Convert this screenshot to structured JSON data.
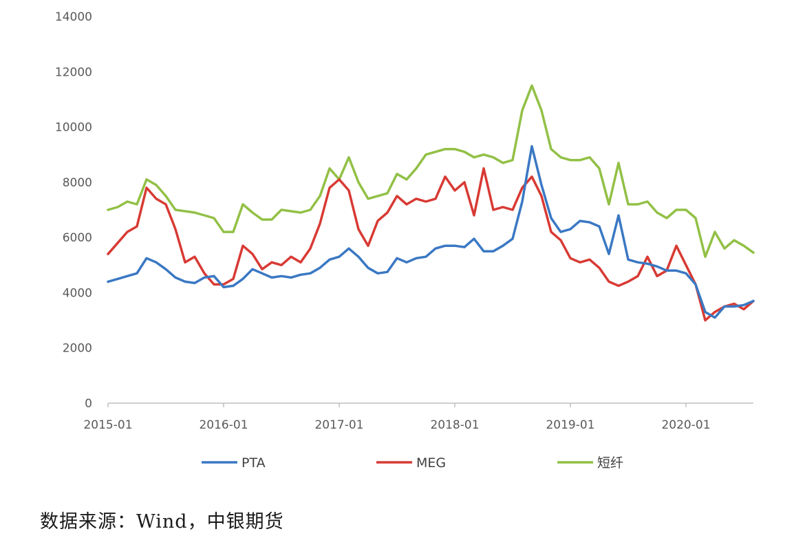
{
  "chart_data": {
    "type": "line",
    "title": "",
    "xlabel": "",
    "ylabel": "",
    "ylim": [
      0,
      14000
    ],
    "y_ticks": [
      "0",
      "2000",
      "4000",
      "6000",
      "8000",
      "10000",
      "12000",
      "14000"
    ],
    "xlim": [
      "2015-01",
      "2020-08"
    ],
    "x_ticks": [
      "2015-01",
      "2016-01",
      "2017-01",
      "2018-01",
      "2019-01",
      "2020-01"
    ],
    "grid": false,
    "legend_position": "bottom",
    "series": [
      {
        "name": "PTA",
        "color": "#3a78c3",
        "points": [
          [
            "2015-01",
            4400
          ],
          [
            "2015-02",
            4500
          ],
          [
            "2015-03",
            4600
          ],
          [
            "2015-04",
            4700
          ],
          [
            "2015-05",
            5250
          ],
          [
            "2015-06",
            5100
          ],
          [
            "2015-07",
            4850
          ],
          [
            "2015-08",
            4550
          ],
          [
            "2015-09",
            4400
          ],
          [
            "2015-10",
            4350
          ],
          [
            "2015-11",
            4550
          ],
          [
            "2015-12",
            4600
          ],
          [
            "2016-01",
            4200
          ],
          [
            "2016-02",
            4250
          ],
          [
            "2016-03",
            4500
          ],
          [
            "2016-04",
            4850
          ],
          [
            "2016-05",
            4700
          ],
          [
            "2016-06",
            4550
          ],
          [
            "2016-07",
            4600
          ],
          [
            "2016-08",
            4550
          ],
          [
            "2016-09",
            4650
          ],
          [
            "2016-10",
            4700
          ],
          [
            "2016-11",
            4900
          ],
          [
            "2016-12",
            5200
          ],
          [
            "2017-01",
            5300
          ],
          [
            "2017-02",
            5600
          ],
          [
            "2017-03",
            5300
          ],
          [
            "2017-04",
            4900
          ],
          [
            "2017-05",
            4700
          ],
          [
            "2017-06",
            4750
          ],
          [
            "2017-07",
            5250
          ],
          [
            "2017-08",
            5100
          ],
          [
            "2017-09",
            5250
          ],
          [
            "2017-10",
            5300
          ],
          [
            "2017-11",
            5600
          ],
          [
            "2017-12",
            5700
          ],
          [
            "2018-01",
            5700
          ],
          [
            "2018-02",
            5650
          ],
          [
            "2018-03",
            5950
          ],
          [
            "2018-04",
            5500
          ],
          [
            "2018-05",
            5500
          ],
          [
            "2018-06",
            5700
          ],
          [
            "2018-07",
            5950
          ],
          [
            "2018-08",
            7300
          ],
          [
            "2018-09",
            9300
          ],
          [
            "2018-10",
            7900
          ],
          [
            "2018-11",
            6700
          ],
          [
            "2018-12",
            6200
          ],
          [
            "2019-01",
            6300
          ],
          [
            "2019-02",
            6600
          ],
          [
            "2019-03",
            6550
          ],
          [
            "2019-04",
            6400
          ],
          [
            "2019-05",
            5400
          ],
          [
            "2019-06",
            6800
          ],
          [
            "2019-07",
            5200
          ],
          [
            "2019-08",
            5100
          ],
          [
            "2019-09",
            5050
          ],
          [
            "2019-10",
            4950
          ],
          [
            "2019-11",
            4800
          ],
          [
            "2019-12",
            4800
          ],
          [
            "2020-01",
            4700
          ],
          [
            "2020-02",
            4300
          ],
          [
            "2020-03",
            3300
          ],
          [
            "2020-04",
            3100
          ],
          [
            "2020-05",
            3500
          ],
          [
            "2020-06",
            3500
          ],
          [
            "2020-07",
            3550
          ],
          [
            "2020-08",
            3700
          ]
        ]
      },
      {
        "name": "MEG",
        "color": "#d83a34",
        "points": [
          [
            "2015-01",
            5400
          ],
          [
            "2015-02",
            5800
          ],
          [
            "2015-03",
            6200
          ],
          [
            "2015-04",
            6400
          ],
          [
            "2015-05",
            7800
          ],
          [
            "2015-06",
            7400
          ],
          [
            "2015-07",
            7200
          ],
          [
            "2015-08",
            6300
          ],
          [
            "2015-09",
            5100
          ],
          [
            "2015-10",
            5300
          ],
          [
            "2015-11",
            4700
          ],
          [
            "2015-12",
            4300
          ],
          [
            "2016-01",
            4300
          ],
          [
            "2016-02",
            4500
          ],
          [
            "2016-03",
            5700
          ],
          [
            "2016-04",
            5400
          ],
          [
            "2016-05",
            4850
          ],
          [
            "2016-06",
            5100
          ],
          [
            "2016-07",
            5000
          ],
          [
            "2016-08",
            5300
          ],
          [
            "2016-09",
            5100
          ],
          [
            "2016-10",
            5600
          ],
          [
            "2016-11",
            6500
          ],
          [
            "2016-12",
            7800
          ],
          [
            "2017-01",
            8100
          ],
          [
            "2017-02",
            7700
          ],
          [
            "2017-03",
            6300
          ],
          [
            "2017-04",
            5700
          ],
          [
            "2017-05",
            6600
          ],
          [
            "2017-06",
            6900
          ],
          [
            "2017-07",
            7500
          ],
          [
            "2017-08",
            7200
          ],
          [
            "2017-09",
            7400
          ],
          [
            "2017-10",
            7300
          ],
          [
            "2017-11",
            7400
          ],
          [
            "2017-12",
            8200
          ],
          [
            "2018-01",
            7700
          ],
          [
            "2018-02",
            8000
          ],
          [
            "2018-03",
            6800
          ],
          [
            "2018-04",
            8500
          ],
          [
            "2018-05",
            7000
          ],
          [
            "2018-06",
            7100
          ],
          [
            "2018-07",
            7000
          ],
          [
            "2018-08",
            7800
          ],
          [
            "2018-09",
            8200
          ],
          [
            "2018-10",
            7500
          ],
          [
            "2018-11",
            6200
          ],
          [
            "2018-12",
            5900
          ],
          [
            "2019-01",
            5250
          ],
          [
            "2019-02",
            5100
          ],
          [
            "2019-03",
            5200
          ],
          [
            "2019-04",
            4900
          ],
          [
            "2019-05",
            4400
          ],
          [
            "2019-06",
            4250
          ],
          [
            "2019-07",
            4400
          ],
          [
            "2019-08",
            4600
          ],
          [
            "2019-09",
            5300
          ],
          [
            "2019-10",
            4600
          ],
          [
            "2019-11",
            4800
          ],
          [
            "2019-12",
            5700
          ],
          [
            "2020-01",
            5000
          ],
          [
            "2020-02",
            4300
          ],
          [
            "2020-03",
            3000
          ],
          [
            "2020-04",
            3300
          ],
          [
            "2020-05",
            3500
          ],
          [
            "2020-06",
            3600
          ],
          [
            "2020-07",
            3400
          ],
          [
            "2020-08",
            3700
          ]
        ]
      },
      {
        "name": "短纤",
        "color": "#92c046",
        "points": [
          [
            "2015-01",
            7000
          ],
          [
            "2015-02",
            7100
          ],
          [
            "2015-03",
            7300
          ],
          [
            "2015-04",
            7200
          ],
          [
            "2015-05",
            8100
          ],
          [
            "2015-06",
            7900
          ],
          [
            "2015-07",
            7500
          ],
          [
            "2015-08",
            7000
          ],
          [
            "2015-09",
            6950
          ],
          [
            "2015-10",
            6900
          ],
          [
            "2015-11",
            6800
          ],
          [
            "2015-12",
            6700
          ],
          [
            "2016-01",
            6200
          ],
          [
            "2016-02",
            6200
          ],
          [
            "2016-03",
            7200
          ],
          [
            "2016-04",
            6900
          ],
          [
            "2016-05",
            6650
          ],
          [
            "2016-06",
            6650
          ],
          [
            "2016-07",
            7000
          ],
          [
            "2016-08",
            6950
          ],
          [
            "2016-09",
            6900
          ],
          [
            "2016-10",
            7000
          ],
          [
            "2016-11",
            7500
          ],
          [
            "2016-12",
            8500
          ],
          [
            "2017-01",
            8100
          ],
          [
            "2017-02",
            8900
          ],
          [
            "2017-03",
            8000
          ],
          [
            "2017-04",
            7400
          ],
          [
            "2017-05",
            7500
          ],
          [
            "2017-06",
            7600
          ],
          [
            "2017-07",
            8300
          ],
          [
            "2017-08",
            8100
          ],
          [
            "2017-09",
            8500
          ],
          [
            "2017-10",
            9000
          ],
          [
            "2017-11",
            9100
          ],
          [
            "2017-12",
            9200
          ],
          [
            "2018-01",
            9200
          ],
          [
            "2018-02",
            9100
          ],
          [
            "2018-03",
            8900
          ],
          [
            "2018-04",
            9000
          ],
          [
            "2018-05",
            8900
          ],
          [
            "2018-06",
            8700
          ],
          [
            "2018-07",
            8800
          ],
          [
            "2018-08",
            10600
          ],
          [
            "2018-09",
            11500
          ],
          [
            "2018-10",
            10600
          ],
          [
            "2018-11",
            9200
          ],
          [
            "2018-12",
            8900
          ],
          [
            "2019-01",
            8800
          ],
          [
            "2019-02",
            8800
          ],
          [
            "2019-03",
            8900
          ],
          [
            "2019-04",
            8500
          ],
          [
            "2019-05",
            7200
          ],
          [
            "2019-06",
            8700
          ],
          [
            "2019-07",
            7200
          ],
          [
            "2019-08",
            7200
          ],
          [
            "2019-09",
            7300
          ],
          [
            "2019-10",
            6900
          ],
          [
            "2019-11",
            6700
          ],
          [
            "2019-12",
            7000
          ],
          [
            "2020-01",
            7000
          ],
          [
            "2020-02",
            6700
          ],
          [
            "2020-03",
            5300
          ],
          [
            "2020-04",
            6200
          ],
          [
            "2020-05",
            5600
          ],
          [
            "2020-06",
            5900
          ],
          [
            "2020-07",
            5700
          ],
          [
            "2020-08",
            5450
          ]
        ]
      }
    ]
  },
  "source_note": "数据来源：Wind，中银期货"
}
